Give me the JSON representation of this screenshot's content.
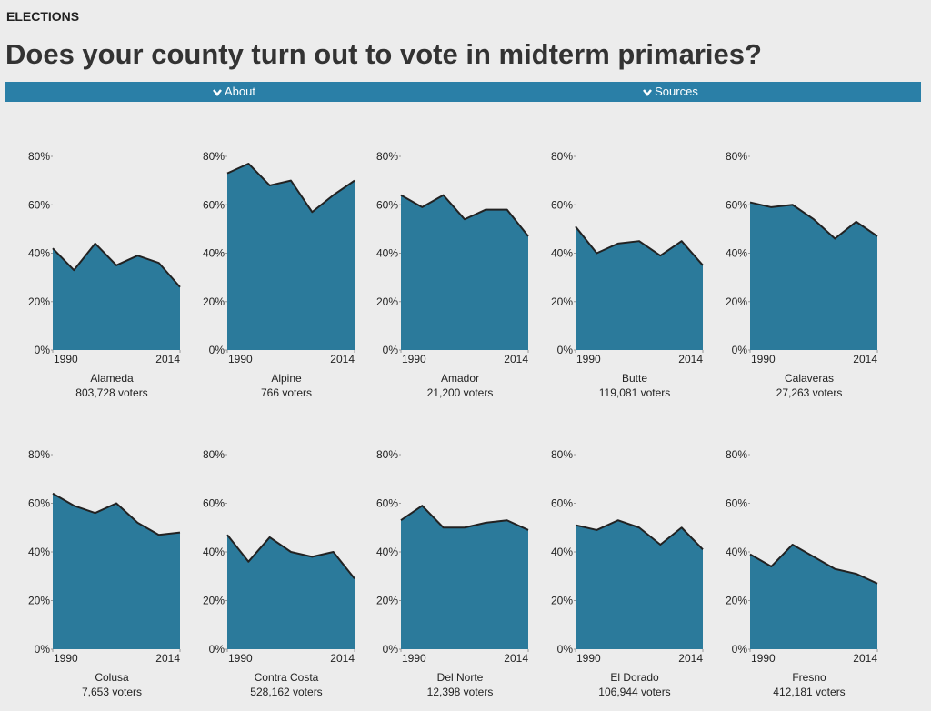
{
  "header": {
    "section": "ELECTIONS",
    "title": "Does your county turn out to vote in midterm primaries?",
    "menu": [
      "About",
      "Sources"
    ]
  },
  "chart_data": [
    {
      "type": "area",
      "title": "Alameda",
      "subtitle": "803,728 voters",
      "x": [
        1990,
        1994,
        1998,
        2002,
        2006,
        2010,
        2014
      ],
      "values": [
        42,
        33,
        44,
        35,
        39,
        36,
        26
      ]
    },
    {
      "type": "area",
      "title": "Alpine",
      "subtitle": "766 voters",
      "x": [
        1990,
        1994,
        1998,
        2002,
        2006,
        2010,
        2014
      ],
      "values": [
        73,
        77,
        68,
        70,
        57,
        64,
        70
      ]
    },
    {
      "type": "area",
      "title": "Amador",
      "subtitle": "21,200 voters",
      "x": [
        1990,
        1994,
        1998,
        2002,
        2006,
        2010,
        2014
      ],
      "values": [
        64,
        59,
        64,
        54,
        58,
        58,
        47
      ]
    },
    {
      "type": "area",
      "title": "Butte",
      "subtitle": "119,081 voters",
      "x": [
        1990,
        1994,
        1998,
        2002,
        2006,
        2010,
        2014
      ],
      "values": [
        51,
        40,
        44,
        45,
        39,
        45,
        35
      ]
    },
    {
      "type": "area",
      "title": "Calaveras",
      "subtitle": "27,263 voters",
      "x": [
        1990,
        1994,
        1998,
        2002,
        2006,
        2010,
        2014
      ],
      "values": [
        61,
        59,
        60,
        54,
        46,
        53,
        47
      ]
    },
    {
      "type": "area",
      "title": "Colusa",
      "subtitle": "7,653 voters",
      "x": [
        1990,
        1994,
        1998,
        2002,
        2006,
        2010,
        2014
      ],
      "values": [
        64,
        59,
        56,
        60,
        52,
        47,
        48
      ]
    },
    {
      "type": "area",
      "title": "Contra Costa",
      "subtitle": "528,162 voters",
      "x": [
        1990,
        1994,
        1998,
        2002,
        2006,
        2010,
        2014
      ],
      "values": [
        47,
        36,
        46,
        40,
        38,
        40,
        29
      ]
    },
    {
      "type": "area",
      "title": "Del Norte",
      "subtitle": "12,398 voters",
      "x": [
        1990,
        1994,
        1998,
        2002,
        2006,
        2010,
        2014
      ],
      "values": [
        53,
        59,
        50,
        50,
        52,
        53,
        49
      ]
    },
    {
      "type": "area",
      "title": "El Dorado",
      "subtitle": "106,944 voters",
      "x": [
        1990,
        1994,
        1998,
        2002,
        2006,
        2010,
        2014
      ],
      "values": [
        51,
        49,
        53,
        50,
        43,
        50,
        41
      ]
    },
    {
      "type": "area",
      "title": "Fresno",
      "subtitle": "412,181 voters",
      "x": [
        1990,
        1994,
        1998,
        2002,
        2006,
        2010,
        2014
      ],
      "values": [
        39,
        34,
        43,
        38,
        33,
        31,
        27
      ]
    }
  ],
  "shared": {
    "color": "#2b7a9b",
    "line_color": "#222222",
    "xlim": [
      1990,
      2014
    ],
    "xticks": [
      1990,
      2014
    ],
    "ylim": [
      0,
      80
    ],
    "yticks": [
      {
        "value": 0,
        "label": "0%"
      },
      {
        "value": 20,
        "label": "20%"
      },
      {
        "value": 40,
        "label": "40%"
      },
      {
        "value": 60,
        "label": "60%"
      },
      {
        "value": 80,
        "label": "80%"
      }
    ]
  }
}
